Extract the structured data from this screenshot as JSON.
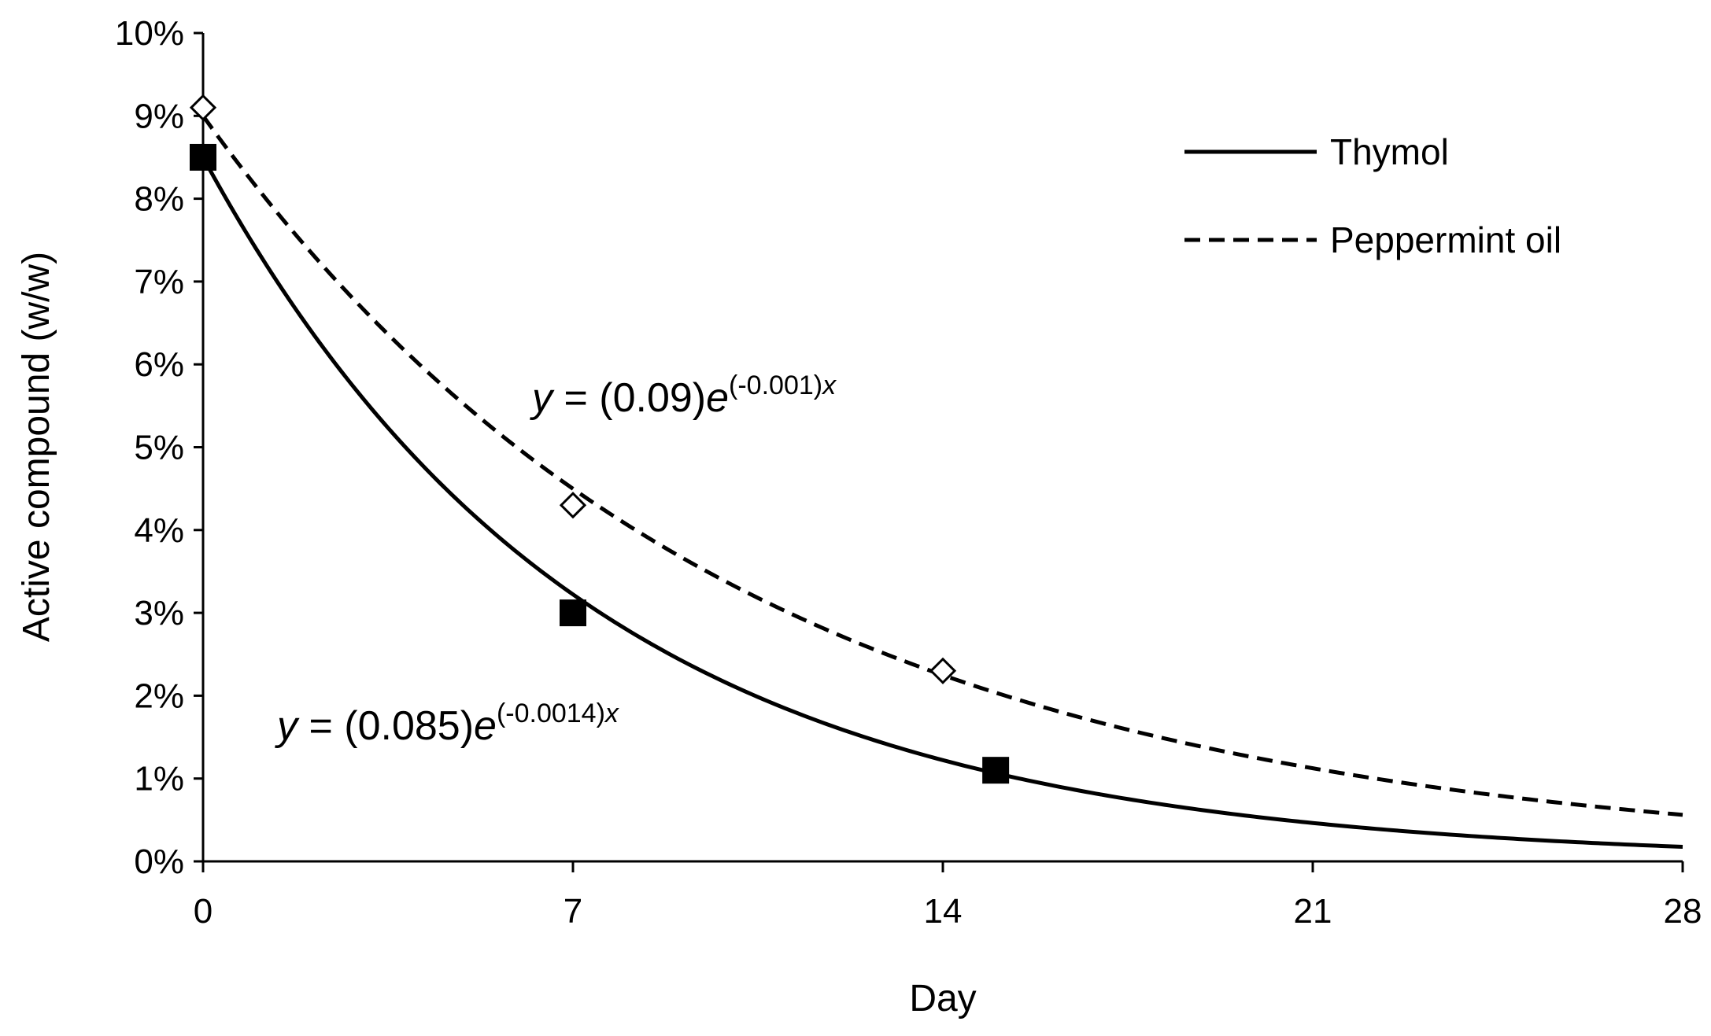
{
  "chart_data": {
    "type": "scatter",
    "title": "",
    "xlabel": "Day",
    "ylabel": "Active compound (w/w)",
    "xlim": [
      0,
      28
    ],
    "ylim": [
      0,
      0.1
    ],
    "x_ticks": [
      "0",
      "7",
      "14",
      "21",
      "28"
    ],
    "y_ticks": [
      "0%",
      "1%",
      "2%",
      "3%",
      "4%",
      "5%",
      "6%",
      "7%",
      "8%",
      "9%",
      "10%"
    ],
    "grid": false,
    "legend_position": "top-right",
    "series": [
      {
        "name": "Thymol",
        "line_style": "solid",
        "marker": "filled-square",
        "x": [
          0,
          7,
          15
        ],
        "y": [
          0.085,
          0.03,
          0.011
        ],
        "fit": {
          "a": 0.085,
          "k": 0.0014,
          "equation_text": "(0.085)",
          "exponent_text": "(-0.0014)"
        }
      },
      {
        "name": "Peppermint oil",
        "line_style": "dashed",
        "marker": "open-diamond",
        "x": [
          0,
          7,
          14
        ],
        "y": [
          0.091,
          0.043,
          0.023
        ],
        "fit": {
          "a": 0.09,
          "k": 0.001,
          "equation_text": "(0.09)",
          "exponent_text": "(-0.001)"
        }
      }
    ],
    "annotations": {
      "peppermint_equation": {
        "y": "y",
        "equals": " = ",
        "coef": "(0.09)",
        "e": "e",
        "exponent": "(-0.001)",
        "x": "x"
      },
      "thymol_equation": {
        "y": "y",
        "equals": " = ",
        "coef": "(0.085)",
        "e": "e",
        "exponent": "(-0.0014)",
        "x": "x"
      }
    }
  }
}
